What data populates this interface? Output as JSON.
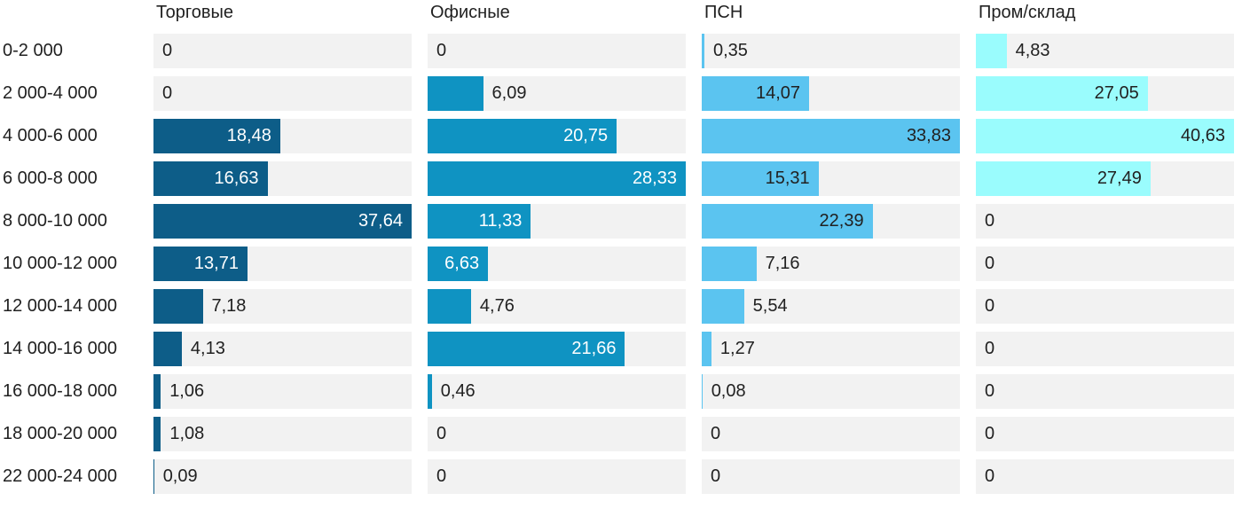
{
  "chart_data": {
    "type": "bar",
    "orientation": "horizontal",
    "scale": "per-series-max",
    "value_format": "comma-decimal",
    "background": "#ffffff",
    "track_color": "#f2f2f2",
    "text_color": "#212121",
    "categories": [
      "0-2 000",
      "2 000-4 000",
      "4 000-6 000",
      "6 000-8 000",
      "8 000-10 000",
      "10 000-12 000",
      "12 000-14 000",
      "14 000-16 000",
      "16 000-18 000",
      "18 000-20 000",
      "22 000-24 000"
    ],
    "series": [
      {
        "name": "Торговые",
        "color": "#0d5d88",
        "inside_label_color": "#ffffff",
        "outside_label_color": "#212121",
        "values": [
          0,
          0,
          18.48,
          16.63,
          37.64,
          13.71,
          7.18,
          4.13,
          1.06,
          1.08,
          0.09
        ],
        "labels": [
          "0",
          "0",
          "18,48",
          "16,63",
          "37,64",
          "13,71",
          "7,18",
          "4,13",
          "1,06",
          "1,08",
          "0,09"
        ],
        "label_inside": [
          false,
          false,
          true,
          true,
          true,
          true,
          false,
          false,
          false,
          false,
          false
        ]
      },
      {
        "name": "Офисные",
        "color": "#0f93c2",
        "inside_label_color": "#ffffff",
        "outside_label_color": "#212121",
        "values": [
          0,
          6.09,
          20.75,
          28.33,
          11.33,
          6.63,
          4.76,
          21.66,
          0.46,
          0,
          0
        ],
        "labels": [
          "0",
          "6,09",
          "20,75",
          "28,33",
          "11,33",
          "6,63",
          "4,76",
          "21,66",
          "0,46",
          "0",
          "0"
        ],
        "label_inside": [
          false,
          false,
          true,
          true,
          true,
          true,
          false,
          true,
          false,
          false,
          false
        ]
      },
      {
        "name": "ПСН",
        "color": "#5bc4f0",
        "inside_label_color": "#212121",
        "outside_label_color": "#212121",
        "values": [
          0.35,
          14.07,
          33.83,
          15.31,
          22.39,
          7.16,
          5.54,
          1.27,
          0.08,
          0,
          0
        ],
        "labels": [
          "0,35",
          "14,07",
          "33,83",
          "15,31",
          "22,39",
          "7,16",
          "5,54",
          "1,27",
          "0,08",
          "0",
          "0"
        ],
        "label_inside": [
          false,
          true,
          true,
          true,
          true,
          false,
          false,
          false,
          false,
          false,
          false
        ]
      },
      {
        "name": "Пром/склад",
        "color": "#9afcfd",
        "inside_label_color": "#212121",
        "outside_label_color": "#212121",
        "values": [
          4.83,
          27.05,
          40.63,
          27.49,
          0,
          0,
          0,
          0,
          0,
          0,
          0
        ],
        "labels": [
          "4,83",
          "27,05",
          "40,63",
          "27,49",
          "0",
          "0",
          "0",
          "0",
          "0",
          "0",
          "0"
        ],
        "label_inside": [
          false,
          true,
          true,
          true,
          false,
          false,
          false,
          false,
          false,
          false,
          false
        ]
      }
    ]
  }
}
